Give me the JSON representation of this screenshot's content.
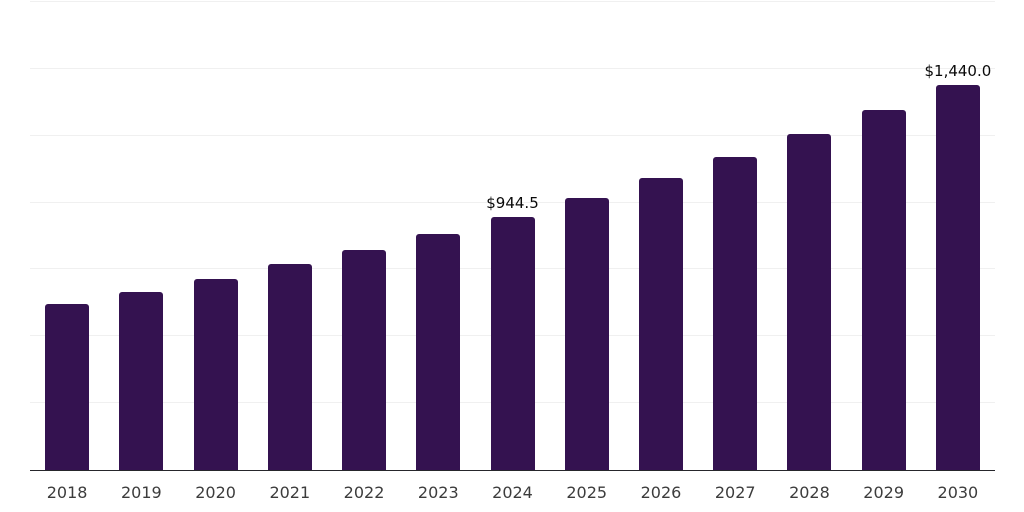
{
  "chart_data": {
    "type": "bar",
    "title": "",
    "xlabel": "",
    "ylabel": "",
    "categories": [
      "2018",
      "2019",
      "2020",
      "2021",
      "2022",
      "2023",
      "2024",
      "2025",
      "2026",
      "2027",
      "2028",
      "2029",
      "2030"
    ],
    "values": [
      621,
      666,
      713,
      769,
      822,
      882,
      944.5,
      1016,
      1093,
      1170,
      1257,
      1347,
      1440
    ],
    "data_labels": [
      null,
      null,
      null,
      null,
      null,
      null,
      "$944.5",
      null,
      null,
      null,
      null,
      null,
      "$1,440.0"
    ],
    "ylim": [
      0,
      1750
    ],
    "gridline_interval": 250,
    "grid": true,
    "legend": false,
    "y_axis_labels_visible": false,
    "colors": {
      "bar": "#341250",
      "gridline": "#f0f0f0",
      "axis_line": "#26262b",
      "tick_label": "#3c3c3c",
      "data_label": "#0a0a0a",
      "background": "#ffffff"
    }
  }
}
